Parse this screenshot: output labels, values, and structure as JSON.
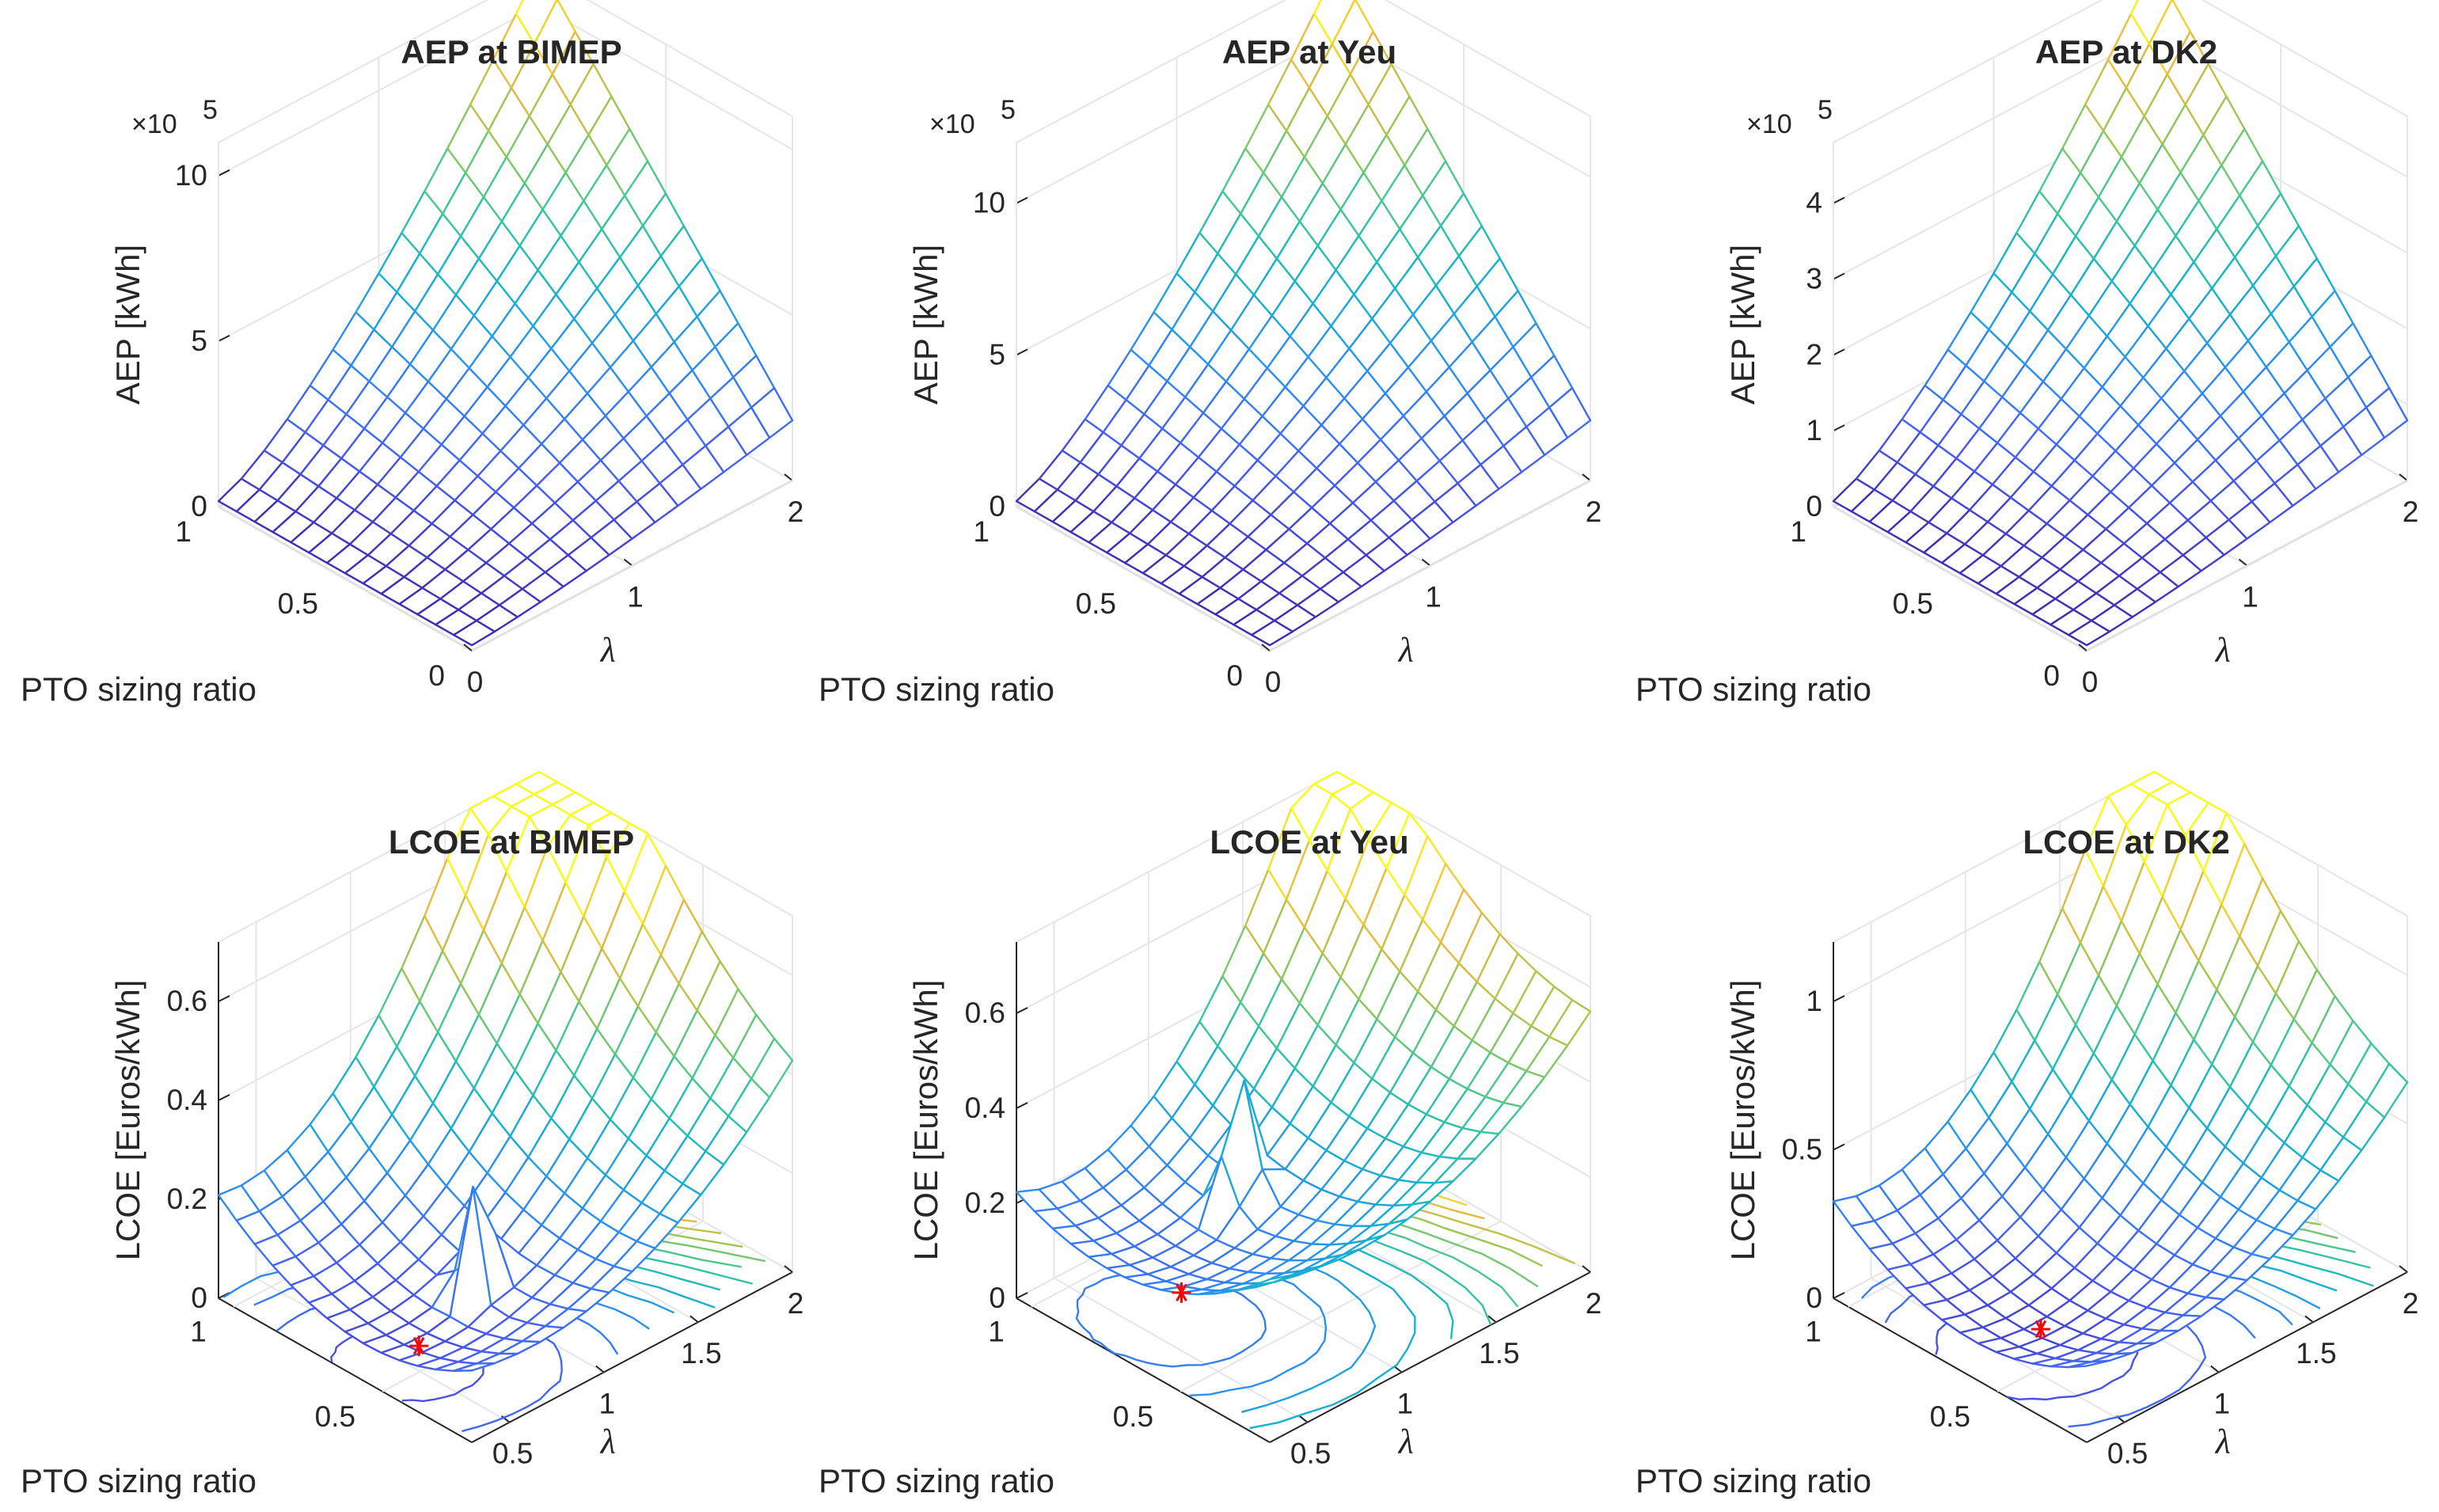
{
  "figure": {
    "exponent_label": "×10",
    "exponent_power": "5"
  },
  "chart_data": [
    {
      "type": "surface3d",
      "title": "AEP at BIMEP",
      "xlabel": "λ",
      "ylabel": "PTO sizing ratio",
      "zlabel": "AEP [kWh]",
      "x_ticks": [
        "0",
        "1",
        "2"
      ],
      "y_ticks": [
        "0",
        "0.5",
        "1"
      ],
      "z_ticks": [
        "0",
        "5",
        "10"
      ],
      "zlim": [
        0,
        1100000
      ],
      "x_range": [
        0,
        2
      ],
      "y_range": [
        0,
        1
      ],
      "grid": [
        15,
        15
      ],
      "z_max": 1100000,
      "exponent": true
    },
    {
      "type": "surface3d",
      "title": "AEP at Yeu",
      "xlabel": "λ",
      "ylabel": "PTO sizing ratio",
      "zlabel": "AEP [kWh]",
      "x_ticks": [
        "0",
        "1",
        "2"
      ],
      "y_ticks": [
        "0",
        "0.5",
        "1"
      ],
      "z_ticks": [
        "0",
        "5",
        "10"
      ],
      "zlim": [
        0,
        1200000
      ],
      "x_range": [
        0,
        2
      ],
      "y_range": [
        0,
        1
      ],
      "grid": [
        15,
        15
      ],
      "z_max": 1200000,
      "exponent": true
    },
    {
      "type": "surface3d",
      "title": "AEP at DK2",
      "xlabel": "λ",
      "ylabel": "PTO sizing ratio",
      "zlabel": "AEP [kWh]",
      "x_ticks": [
        "0",
        "1",
        "2"
      ],
      "y_ticks": [
        "0",
        "0.5",
        "1"
      ],
      "z_ticks": [
        "0",
        "1",
        "2",
        "3",
        "4"
      ],
      "zlim": [
        0,
        480000
      ],
      "x_range": [
        0,
        2
      ],
      "y_range": [
        0,
        1
      ],
      "grid": [
        15,
        15
      ],
      "z_max": 480000,
      "exponent": true
    },
    {
      "type": "surface3d_contour",
      "title": "LCOE at BIMEP",
      "xlabel": "λ",
      "ylabel": "PTO sizing ratio",
      "zlabel": "LCOE [Euros/kWh]",
      "x_ticks": [
        "0.5",
        "1",
        "1.5",
        "2"
      ],
      "y_ticks": [
        "0.5",
        "1"
      ],
      "z_ticks": [
        "0",
        "0.2",
        "0.4",
        "0.6"
      ],
      "zlim": [
        0,
        0.72
      ],
      "x_range": [
        0.3,
        2
      ],
      "y_range": [
        0.2,
        1.05
      ],
      "grid": [
        15,
        15
      ],
      "z_max": 0.72,
      "minimum": {
        "lambda": 0.62,
        "ratio": 0.58,
        "value": 0.05
      },
      "lcoe_params": {
        "z_corner_min_lambda_max_ratio": 0.42,
        "z_corner_max_lambda_min_ratio": 0.62,
        "z_far_corner": 0.72,
        "spike_height": 0.31
      },
      "exponent": false
    },
    {
      "type": "surface3d_contour",
      "title": "LCOE at Yeu",
      "xlabel": "λ",
      "ylabel": "PTO sizing ratio",
      "zlabel": "LCOE [Euros/kWh]",
      "x_ticks": [
        "0.5",
        "1",
        "1.5",
        "2"
      ],
      "y_ticks": [
        "0.5",
        "1"
      ],
      "z_ticks": [
        "0",
        "0.2",
        "0.4",
        "0.6"
      ],
      "zlim": [
        0,
        0.75
      ],
      "x_range": [
        0.3,
        2
      ],
      "y_range": [
        0.2,
        1.05
      ],
      "grid": [
        15,
        15
      ],
      "z_max": 0.75,
      "minimum": {
        "lambda": 0.78,
        "ratio": 0.8,
        "value": 0.1
      },
      "lcoe_params": {
        "z_corner_min_lambda_max_ratio": 0.58,
        "z_corner_max_lambda_min_ratio": 0.45,
        "z_far_corner": 0.66,
        "spike_height": 0.36
      },
      "exponent": false
    },
    {
      "type": "surface3d_contour",
      "title": "LCOE at DK2",
      "xlabel": "λ",
      "ylabel": "PTO sizing ratio",
      "zlabel": "LCOE [Euros/kWh]",
      "x_ticks": [
        "0.5",
        "1",
        "1.5",
        "2"
      ],
      "y_ticks": [
        "0.5",
        "1"
      ],
      "z_ticks": [
        "0",
        "0.5",
        "1"
      ],
      "zlim": [
        0,
        1.2
      ],
      "x_range": [
        0.3,
        2
      ],
      "y_range": [
        0.2,
        1.05
      ],
      "grid": [
        15,
        15
      ],
      "z_max": 1.2,
      "minimum": {
        "lambda": 0.72,
        "ratio": 0.62,
        "value": 0.05
      },
      "lcoe_params": {
        "z_corner_min_lambda_max_ratio": 0.5,
        "z_corner_max_lambda_min_ratio": 0.75,
        "z_far_corner": 1.18,
        "spike_height": 0.0
      },
      "exponent": false
    }
  ]
}
